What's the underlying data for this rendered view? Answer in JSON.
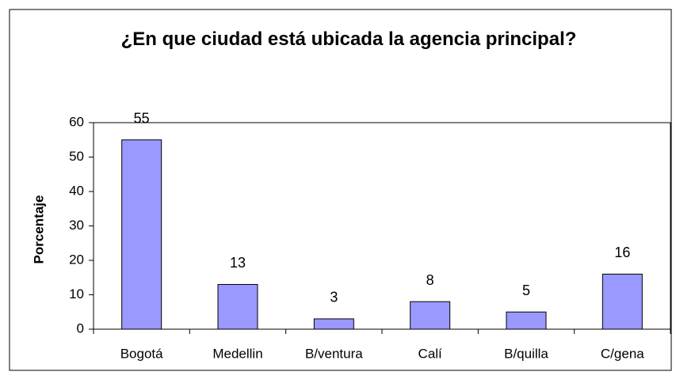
{
  "chart_data": {
    "type": "bar",
    "title": "¿En que ciudad está ubicada la agencia principal?",
    "y_label": "Porcentaje",
    "categories": [
      "Bogotá",
      "Medellin",
      "B/ventura",
      "Calí",
      "B/quilla",
      "C/gena"
    ],
    "values": [
      55,
      13,
      3,
      8,
      5,
      16
    ],
    "color": "#9999ff",
    "ylim": [
      0,
      60
    ],
    "yticks": [
      0,
      10,
      20,
      30,
      40,
      50,
      60
    ],
    "grid": false
  }
}
